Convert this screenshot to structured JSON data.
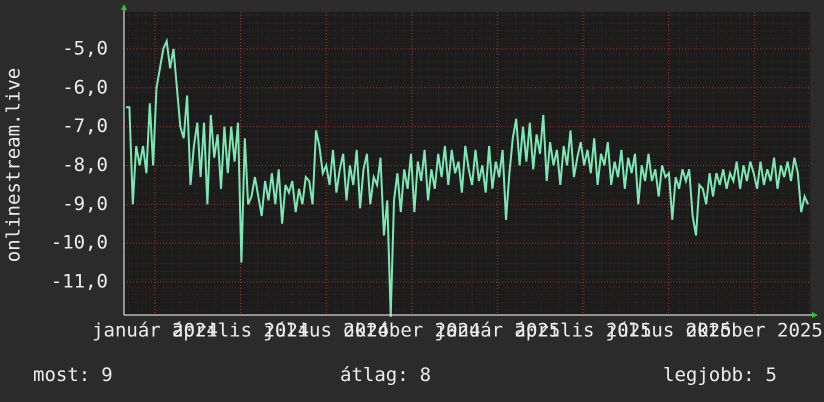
{
  "chart_data": {
    "type": "line",
    "y_label": "onlinestream.live",
    "ylim": [
      -11.85,
      -4.05
    ],
    "yticks": [
      {
        "value": -5,
        "label": "-5,0"
      },
      {
        "value": -6,
        "label": "-6,0"
      },
      {
        "value": -7,
        "label": "-7,0"
      },
      {
        "value": -8,
        "label": "-8,0"
      },
      {
        "value": -9,
        "label": "-9,0"
      },
      {
        "value": -10,
        "label": "-10,0"
      },
      {
        "value": -11,
        "label": "-11,0"
      }
    ],
    "x_tick_labels": [
      "január 2024",
      "április 2024",
      "július 2024",
      "október 2024",
      "január 2025",
      "április 2025",
      "július 2025",
      "október 2025"
    ],
    "grid": true,
    "series": [
      {
        "color": "#7ee8b4",
        "values": [
          -6.5,
          -6.5,
          -9.0,
          -7.5,
          -8.0,
          -7.5,
          -8.2,
          -6.4,
          -8.0,
          -6.0,
          -5.5,
          -5.0,
          -4.8,
          -5.5,
          -5.0,
          -6.0,
          -7.0,
          -7.3,
          -6.2,
          -8.5,
          -7.5,
          -6.9,
          -8.3,
          -6.9,
          -9.0,
          -6.7,
          -7.8,
          -7.2,
          -8.6,
          -7.0,
          -8.2,
          -7.0,
          -7.9,
          -6.9,
          -10.5,
          -7.3,
          -9.0,
          -8.8,
          -8.3,
          -8.8,
          -9.3,
          -8.4,
          -8.9,
          -8.2,
          -9.0,
          -8.1,
          -9.5,
          -8.5,
          -8.7,
          -8.4,
          -9.2,
          -8.6,
          -9.0,
          -8.3,
          -8.4,
          -9.0,
          -7.1,
          -7.5,
          -8.2,
          -8.0,
          -8.5,
          -7.6,
          -8.7,
          -8.1,
          -7.7,
          -8.9,
          -8.0,
          -8.5,
          -7.6,
          -9.1,
          -8.1,
          -7.7,
          -9.0,
          -8.3,
          -8.5,
          -7.8,
          -9.8,
          -8.9,
          -11.9,
          -8.9,
          -8.2,
          -9.2,
          -8.1,
          -8.6,
          -7.7,
          -9.2,
          -7.9,
          -8.4,
          -7.6,
          -8.9,
          -8.1,
          -8.6,
          -7.7,
          -8.3,
          -7.5,
          -8.5,
          -7.6,
          -8.2,
          -7.9,
          -8.7,
          -7.5,
          -8.1,
          -8.5,
          -7.6,
          -8.4,
          -8.0,
          -8.7,
          -7.5,
          -8.6,
          -7.9,
          -8.3,
          -7.6,
          -9.4,
          -8.2,
          -7.3,
          -6.8,
          -8.0,
          -7.0,
          -7.9,
          -6.9,
          -8.1,
          -7.2,
          -7.7,
          -6.7,
          -8.4,
          -7.4,
          -8.0,
          -7.6,
          -8.5,
          -7.5,
          -8.0,
          -7.1,
          -8.3,
          -7.8,
          -7.4,
          -8.0,
          -7.6,
          -8.2,
          -7.3,
          -8.5,
          -7.7,
          -8.0,
          -7.4,
          -8.5,
          -7.9,
          -8.3,
          -7.6,
          -8.6,
          -7.8,
          -8.2,
          -7.7,
          -9.0,
          -8.0,
          -8.4,
          -7.7,
          -8.4,
          -8.1,
          -8.8,
          -8.0,
          -8.3,
          -8.2,
          -9.4,
          -8.3,
          -8.6,
          -8.1,
          -8.4,
          -8.1,
          -9.3,
          -9.8,
          -8.5,
          -8.6,
          -9.0,
          -8.2,
          -8.8,
          -8.2,
          -8.5,
          -8.1,
          -8.6,
          -8.2,
          -8.4,
          -7.9,
          -8.6,
          -8.0,
          -8.4,
          -7.9,
          -8.2,
          -8.6,
          -7.9,
          -8.5,
          -8.1,
          -8.4,
          -7.8,
          -8.6,
          -8.0,
          -8.3,
          -7.9,
          -8.4,
          -7.8,
          -8.2,
          -9.2,
          -8.8,
          -9.0
        ]
      }
    ]
  },
  "stats": [
    {
      "label": "most:",
      "value": 9
    },
    {
      "label": "átlag:",
      "value": 8
    },
    {
      "label": "legjobb:",
      "value": 5
    }
  ]
}
